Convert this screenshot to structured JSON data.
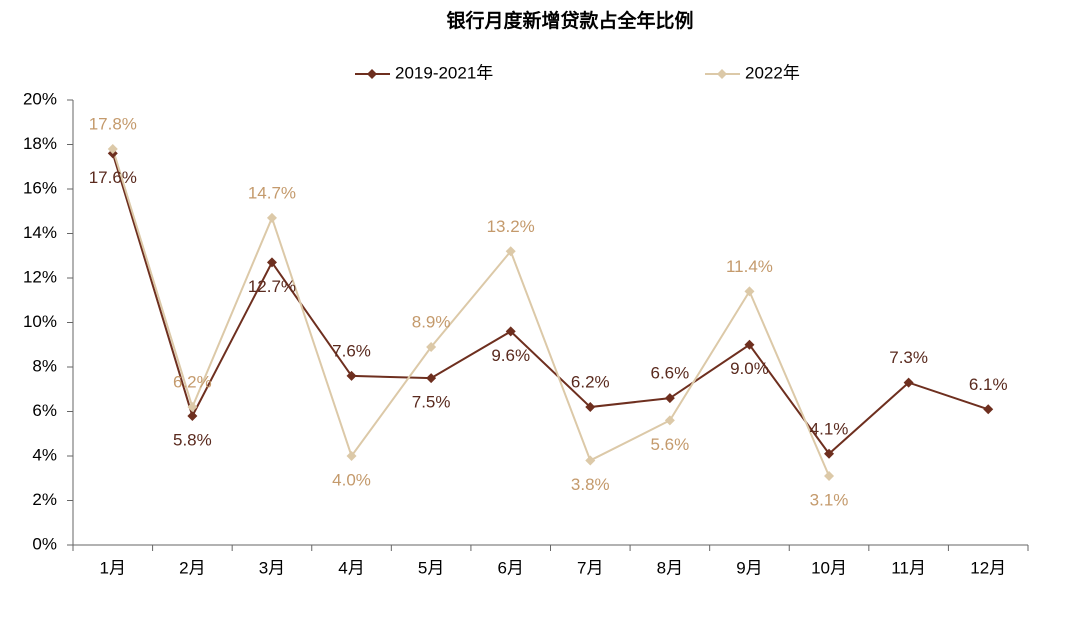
{
  "chart_data": {
    "type": "line",
    "title": "银行月度新增贷款占全年比例",
    "categories": [
      "1月",
      "2月",
      "3月",
      "4月",
      "5月",
      "6月",
      "7月",
      "8月",
      "9月",
      "10月",
      "11月",
      "12月"
    ],
    "series": [
      {
        "name": "2019-2021年",
        "color": "#6e2f1f",
        "label_color": "#5a2a1e",
        "values": [
          17.6,
          5.8,
          12.7,
          7.6,
          7.5,
          9.6,
          6.2,
          6.6,
          9.0,
          4.1,
          7.3,
          6.1
        ],
        "value_labels": [
          "17.6%",
          "5.8%",
          "12.7%",
          "7.6%",
          "7.5%",
          "9.6%",
          "6.2%",
          "6.6%",
          "9.0%",
          "4.1%",
          "7.3%",
          "6.1%"
        ]
      },
      {
        "name": "2022年",
        "color": "#dcc9a8",
        "label_color": "#c49a6c",
        "values": [
          17.8,
          6.2,
          14.7,
          4.0,
          8.9,
          13.2,
          3.8,
          5.6,
          11.4,
          3.1,
          null,
          null
        ],
        "value_labels": [
          "17.8%",
          "6.2%",
          "14.7%",
          "4.0%",
          "8.9%",
          "13.2%",
          "3.8%",
          "5.6%",
          "11.4%",
          "3.1%",
          null,
          null
        ]
      }
    ],
    "ylim": [
      0,
      20
    ],
    "yticks": [
      {
        "value": 0,
        "label": "0%"
      },
      {
        "value": 2,
        "label": "2%"
      },
      {
        "value": 4,
        "label": "4%"
      },
      {
        "value": 6,
        "label": "6%"
      },
      {
        "value": 8,
        "label": "8%"
      },
      {
        "value": 10,
        "label": "10%"
      },
      {
        "value": 12,
        "label": "12%"
      },
      {
        "value": 14,
        "label": "14%"
      },
      {
        "value": 16,
        "label": "16%"
      },
      {
        "value": 18,
        "label": "18%"
      },
      {
        "value": 20,
        "label": "20%"
      }
    ],
    "grid": false,
    "legend": "top"
  }
}
